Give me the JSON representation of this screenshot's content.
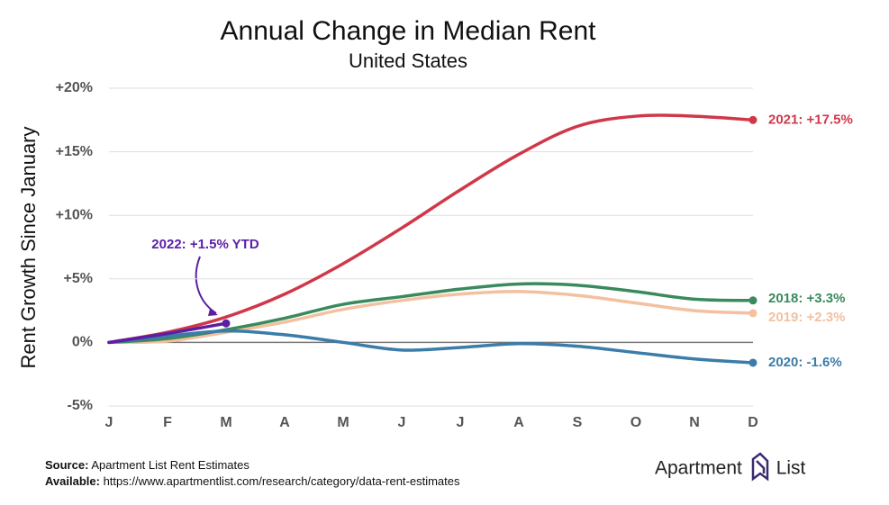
{
  "chart_data": {
    "type": "line",
    "title": "Annual Change in Median Rent",
    "subtitle": "United States",
    "y_label": "Rent Growth Since January",
    "categories": [
      "J",
      "F",
      "M",
      "A",
      "M",
      "J",
      "J",
      "A",
      "S",
      "O",
      "N",
      "D"
    ],
    "series": [
      {
        "name": "2021: +17.5%",
        "color": "#d0384a",
        "values": [
          0,
          0.8,
          2.0,
          3.8,
          6.2,
          9.0,
          12.0,
          14.8,
          17.0,
          17.8,
          17.8,
          17.5
        ]
      },
      {
        "name": "2018: +3.3%",
        "color": "#3a8a5e",
        "values": [
          0,
          0.3,
          1.0,
          1.9,
          3.0,
          3.6,
          4.2,
          4.6,
          4.5,
          4.0,
          3.4,
          3.3
        ]
      },
      {
        "name": "2019: +2.3%",
        "color": "#f3c0a0",
        "values": [
          0,
          0.1,
          0.8,
          1.6,
          2.6,
          3.3,
          3.8,
          4.0,
          3.7,
          3.1,
          2.5,
          2.3
        ]
      },
      {
        "name": "2020: -1.6%",
        "color": "#3b7ca8",
        "values": [
          0,
          0.5,
          0.9,
          0.6,
          0,
          -0.6,
          -0.4,
          -0.1,
          -0.3,
          -0.8,
          -1.3,
          -1.6
        ]
      },
      {
        "name": "2022: +1.5% YTD",
        "color": "#5b1fa5",
        "values": [
          0,
          0.7,
          1.5,
          null,
          null,
          null,
          null,
          null,
          null,
          null,
          null,
          null
        ]
      }
    ],
    "ylim": [
      -5,
      20
    ],
    "yticks": [
      {
        "value": -5,
        "label": "-5%"
      },
      {
        "value": 0,
        "label": "0%"
      },
      {
        "value": 5,
        "label": "+5%"
      },
      {
        "value": 10,
        "label": "+10%"
      },
      {
        "value": 15,
        "label": "+15%"
      },
      {
        "value": 20,
        "label": "+20%"
      }
    ],
    "grid": true,
    "source_label": "Source:",
    "source": "Apartment List Rent Estimates",
    "available_label": "Available:",
    "available": "https://www.apartmentlist.com/research/category/data-rent-estimates",
    "logo": "Apartment List"
  }
}
